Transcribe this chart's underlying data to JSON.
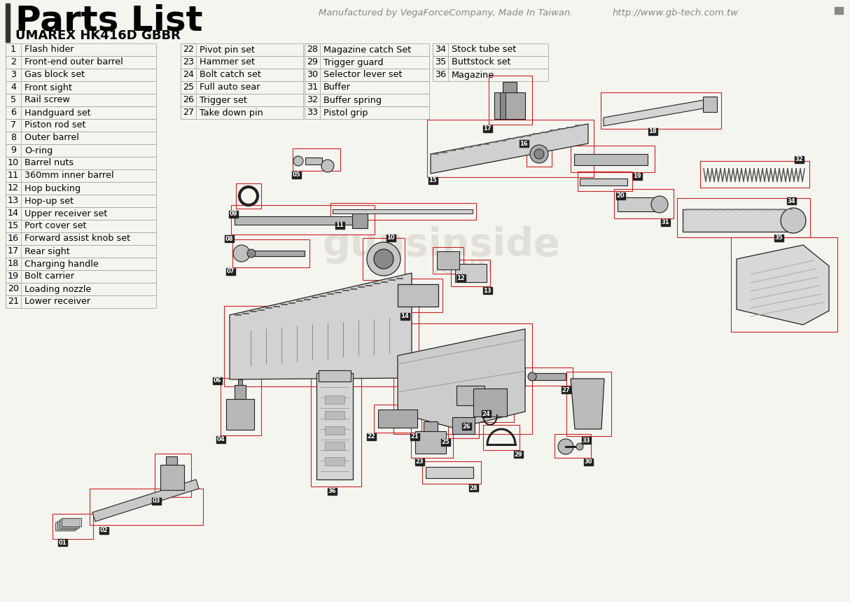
{
  "title": "Parts List",
  "subtitle": "UMAREX HK416D GBBR",
  "manufacturer_text": "Manufactured by VegaForceCompany, Made In Taiwan.",
  "website": "http://www.gb-tech.com.tw",
  "bg_color": "#f5f5f0",
  "title_bar_color": "#333333",
  "table_border_color": "#aaaaaa",
  "parts_col1": [
    [
      1,
      "Flash hider"
    ],
    [
      2,
      "Front-end outer barrel"
    ],
    [
      3,
      "Gas block set"
    ],
    [
      4,
      "Front sight"
    ],
    [
      5,
      "Rail screw"
    ],
    [
      6,
      "Handguard set"
    ],
    [
      7,
      "Piston rod set"
    ],
    [
      8,
      "Outer barrel"
    ],
    [
      9,
      "O-ring"
    ],
    [
      10,
      "Barrel nuts"
    ],
    [
      11,
      "360mm inner barrel"
    ],
    [
      12,
      "Hop bucking"
    ],
    [
      13,
      "Hop-up set"
    ],
    [
      14,
      "Upper receiver set"
    ],
    [
      15,
      "Port cover set"
    ],
    [
      16,
      "Forward assist knob set"
    ],
    [
      17,
      "Rear sight"
    ],
    [
      18,
      "Charging handle"
    ],
    [
      19,
      "Bolt carrier"
    ],
    [
      20,
      "Loading nozzle"
    ],
    [
      21,
      "Lower receiver"
    ]
  ],
  "parts_col2": [
    [
      22,
      "Pivot pin set"
    ],
    [
      23,
      "Hammer set"
    ],
    [
      24,
      "Bolt catch set"
    ],
    [
      25,
      "Full auto sear"
    ],
    [
      26,
      "Trigger set"
    ],
    [
      27,
      "Take down pin"
    ]
  ],
  "parts_col3": [
    [
      28,
      "Magazine catch Set"
    ],
    [
      29,
      "Trigger guard"
    ],
    [
      30,
      "Selector lever set"
    ],
    [
      31,
      "Buffer"
    ],
    [
      32,
      "Buffer spring"
    ],
    [
      33,
      "Pistol grip"
    ]
  ],
  "parts_col4": [
    [
      34,
      "Stock tube set"
    ],
    [
      35,
      "Buttstock set"
    ],
    [
      36,
      "Magazine"
    ]
  ],
  "label_bg_color": "#222222",
  "label_text_color": "#ffffff",
  "red": "#cc2222",
  "dark": "#222222",
  "watermark_color": "#e0e0d8"
}
